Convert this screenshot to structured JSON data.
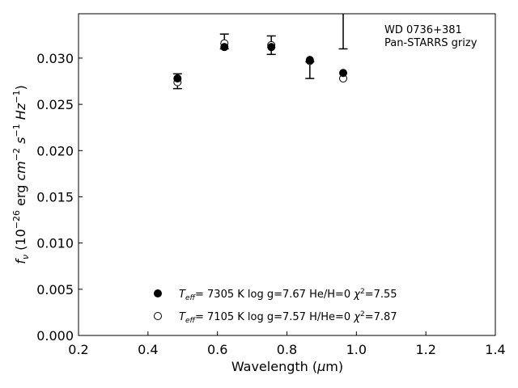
{
  "chart_data": {
    "type": "scatter",
    "annotation_lines": [
      "WD 0736+381",
      "Pan-STARRS grizy"
    ],
    "xlabel": "Wavelength (μm)",
    "ylabel": "f_ν (10^-26 erg cm^-2 s^-1 Hz^-1)",
    "xlim": [
      0.2,
      1.4
    ],
    "ylim": [
      0.0,
      0.0348
    ],
    "x_ticks": [
      0.2,
      0.4,
      0.6,
      0.8,
      1.0,
      1.2,
      1.4
    ],
    "x_tick_labels": [
      "0.2",
      "0.4",
      "0.6",
      "0.8",
      "1.0",
      "1.2",
      "1.4"
    ],
    "y_ticks": [
      0.0,
      0.005,
      0.01,
      0.015,
      0.02,
      0.025,
      0.03
    ],
    "y_tick_labels": [
      "0.000",
      "0.005",
      "0.010",
      "0.015",
      "0.020",
      "0.025",
      "0.030"
    ],
    "grid": false,
    "legend_position": "bottom-center",
    "observed": {
      "x": [
        0.485,
        0.62,
        0.755,
        0.866,
        0.962
      ],
      "y": [
        0.0275,
        0.0318,
        0.0314,
        0.0287,
        0.0347
      ],
      "yerr": [
        0.0008,
        0.0008,
        0.001,
        0.0009,
        0.0037
      ]
    },
    "series": [
      {
        "marker": "filled-circle",
        "legend": "T_eff=  7305 K  log g=7.67  He/H=0  χ²=7.55",
        "x": [
          0.485,
          0.62,
          0.755,
          0.866,
          0.962
        ],
        "y": [
          0.0278,
          0.0312,
          0.0312,
          0.0298,
          0.0284
        ]
      },
      {
        "marker": "open-circle",
        "legend": "T_eff=  7105 K  log g=7.57  H/He=0  χ²=7.87",
        "x": [
          0.485,
          0.62,
          0.755,
          0.866,
          0.962
        ],
        "y": [
          0.0274,
          0.0316,
          0.0314,
          0.0297,
          0.0278
        ]
      }
    ]
  }
}
